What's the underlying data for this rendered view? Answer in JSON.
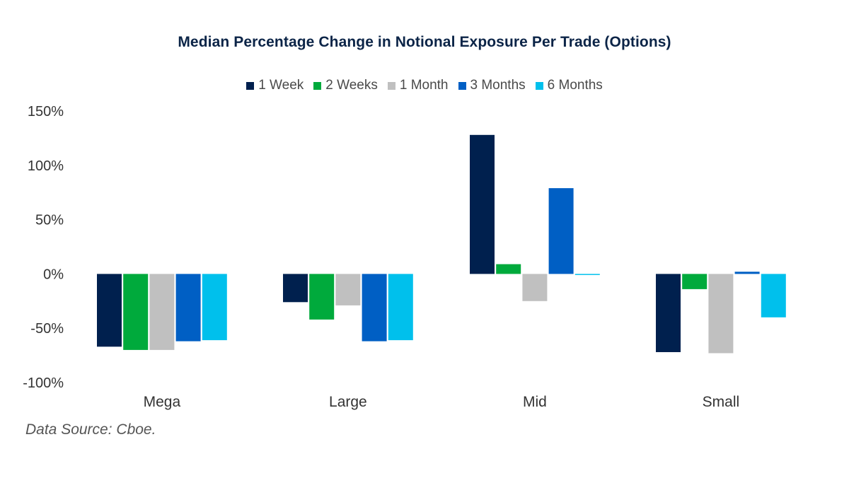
{
  "chart_data": {
    "type": "bar",
    "title": "Median Percentage Change in Notional Exposure Per Trade (Options)",
    "xlabel": "",
    "ylabel": "",
    "categories": [
      "Mega",
      "Large",
      "Mid",
      "Small"
    ],
    "series": [
      {
        "name": "1 Week",
        "color": "#00204e",
        "values": [
          -67,
          -26,
          128,
          -72
        ]
      },
      {
        "name": "2 Weeks",
        "color": "#00aa3c",
        "values": [
          -70,
          -42,
          9,
          -14
        ]
      },
      {
        "name": "1 Month",
        "color": "#c0c0c0",
        "values": [
          -70,
          -29,
          -25,
          -73
        ]
      },
      {
        "name": "3 Months",
        "color": "#005fc4",
        "values": [
          -62,
          -62,
          79,
          2
        ]
      },
      {
        "name": "6 Months",
        "color": "#00c0ec",
        "values": [
          -61,
          -61,
          -1,
          -40
        ]
      }
    ],
    "ylim": [
      -100,
      150
    ],
    "yticks": [
      150,
      100,
      50,
      0,
      -50,
      -100
    ],
    "ytick_labels": [
      "150%",
      "100%",
      "50%",
      "0%",
      "-50%",
      "-100%"
    ],
    "grid": false,
    "legend_position": "top-center",
    "source_note": "Data Source: Cboe."
  }
}
